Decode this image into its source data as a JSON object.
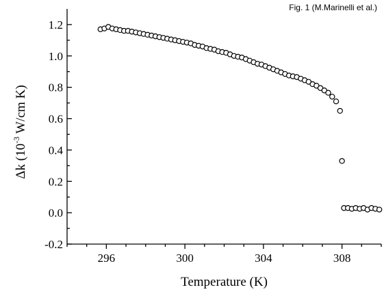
{
  "caption": "Fig. 1 (M.Marinelli et al.)",
  "chart_data": {
    "type": "scatter",
    "title": "",
    "xlabel": "Temperature (K)",
    "ylabel_parts": [
      "Δk (10",
      "-3",
      " W/cm K)"
    ],
    "xlim": [
      294,
      310
    ],
    "ylim": [
      -0.2,
      1.3
    ],
    "xticks": [
      296,
      300,
      304,
      308
    ],
    "yticks": [
      -0.2,
      0.0,
      0.2,
      0.4,
      0.6,
      0.8,
      1.0,
      1.2
    ],
    "ytick_labels": [
      "-0.2",
      "0.0",
      "0.2",
      "0.4",
      "0.6",
      "0.8",
      "1.0",
      "1.2"
    ],
    "grid": false,
    "series": [
      {
        "marker": "open-circle",
        "x": [
          295.7,
          295.9,
          296.1,
          296.3,
          296.5,
          296.7,
          296.9,
          297.1,
          297.3,
          297.5,
          297.7,
          297.9,
          298.1,
          298.3,
          298.5,
          298.7,
          298.9,
          299.1,
          299.3,
          299.5,
          299.7,
          299.9,
          300.1,
          300.3,
          300.5,
          300.7,
          300.9,
          301.1,
          301.3,
          301.5,
          301.7,
          301.9,
          302.1,
          302.3,
          302.5,
          302.7,
          302.9,
          303.1,
          303.3,
          303.5,
          303.7,
          303.9,
          304.1,
          304.3,
          304.5,
          304.7,
          304.9,
          305.1,
          305.3,
          305.5,
          305.7,
          305.9,
          306.1,
          306.3,
          306.5,
          306.7,
          306.9,
          307.1,
          307.3,
          307.5,
          307.7,
          307.9,
          308.0,
          308.1,
          308.3,
          308.5,
          308.7,
          308.9,
          309.1,
          309.3,
          309.5,
          309.7,
          309.9
        ],
        "y": [
          1.17,
          1.175,
          1.185,
          1.175,
          1.17,
          1.165,
          1.16,
          1.16,
          1.155,
          1.15,
          1.145,
          1.14,
          1.135,
          1.13,
          1.125,
          1.12,
          1.115,
          1.11,
          1.105,
          1.1,
          1.095,
          1.09,
          1.085,
          1.08,
          1.07,
          1.065,
          1.06,
          1.05,
          1.045,
          1.04,
          1.03,
          1.025,
          1.02,
          1.01,
          1.0,
          0.995,
          0.99,
          0.98,
          0.97,
          0.96,
          0.95,
          0.945,
          0.935,
          0.925,
          0.915,
          0.905,
          0.895,
          0.885,
          0.875,
          0.87,
          0.865,
          0.855,
          0.845,
          0.835,
          0.82,
          0.81,
          0.795,
          0.78,
          0.765,
          0.74,
          0.71,
          0.65,
          0.33,
          0.03,
          0.03,
          0.025,
          0.03,
          0.025,
          0.03,
          0.02,
          0.03,
          0.025,
          0.02
        ]
      }
    ]
  }
}
